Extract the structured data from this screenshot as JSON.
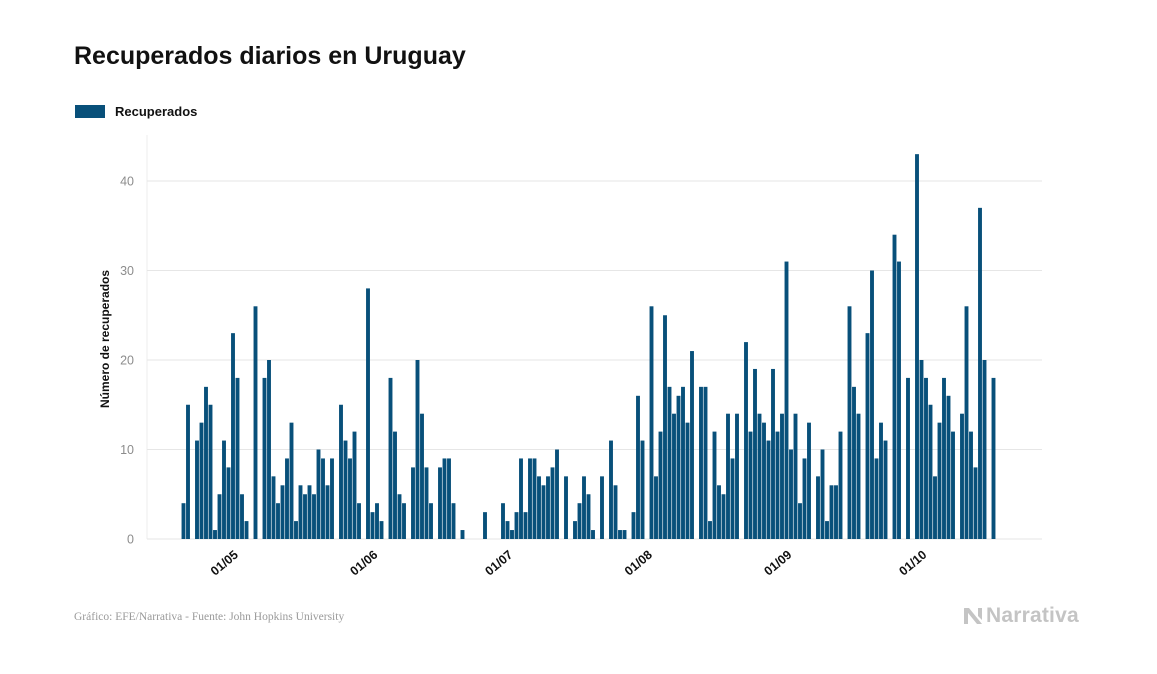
{
  "header": {
    "title": "Recuperados diarios en Uruguay"
  },
  "footer": {
    "source": "Gráfico: EFE/Narrativa - Fuente: John Hopkins University",
    "brand": "Narrativa"
  },
  "colors": {
    "bar": "#08507a",
    "grid": "#e6e6e6",
    "tick_text": "#8c8c8c",
    "axis_title": "#111111"
  },
  "chart_data": {
    "type": "bar",
    "title": "Recuperados diarios en Uruguay",
    "xlabel": "",
    "ylabel": "Número de recuperados",
    "ylim": [
      0,
      45
    ],
    "yticks": [
      0,
      10,
      20,
      30,
      40
    ],
    "grid": true,
    "legend": "top-left",
    "x_start": "2020-04-20",
    "x_tick_labels": [
      "01/05",
      "01/06",
      "01/07",
      "01/08",
      "01/09",
      "01/10"
    ],
    "x_tick_dates": [
      "2020-05-01",
      "2020-06-01",
      "2020-07-01",
      "2020-08-01",
      "2020-09-01",
      "2020-10-01"
    ],
    "series": [
      {
        "name": "Recuperados",
        "values": [
          4,
          15,
          0,
          11,
          13,
          17,
          15,
          1,
          5,
          11,
          8,
          23,
          18,
          5,
          2,
          0,
          26,
          0,
          18,
          20,
          7,
          4,
          6,
          9,
          13,
          2,
          6,
          5,
          6,
          5,
          10,
          9,
          6,
          9,
          0,
          15,
          11,
          9,
          12,
          4,
          0,
          28,
          3,
          4,
          2,
          0,
          18,
          12,
          5,
          4,
          0,
          8,
          20,
          14,
          8,
          4,
          0,
          8,
          9,
          9,
          4,
          0,
          1,
          0,
          0,
          0,
          0,
          3,
          0,
          0,
          0,
          4,
          2,
          1,
          3,
          9,
          3,
          9,
          9,
          7,
          6,
          7,
          8,
          10,
          0,
          7,
          0,
          2,
          4,
          7,
          5,
          1,
          0,
          7,
          0,
          11,
          6,
          1,
          1,
          0,
          3,
          16,
          11,
          0,
          26,
          7,
          12,
          25,
          17,
          14,
          16,
          17,
          13,
          21,
          0,
          17,
          17,
          2,
          12,
          6,
          5,
          14,
          9,
          14,
          0,
          22,
          12,
          19,
          14,
          13,
          11,
          19,
          12,
          14,
          31,
          10,
          14,
          4,
          9,
          13,
          0,
          7,
          10,
          2,
          6,
          6,
          12,
          0,
          26,
          17,
          14,
          0,
          23,
          30,
          9,
          13,
          11,
          0,
          34,
          31,
          0,
          18,
          0,
          43,
          20,
          18,
          15,
          7,
          13,
          18,
          16,
          12,
          0,
          14,
          26,
          12,
          8,
          37,
          20,
          0,
          18
        ]
      }
    ]
  }
}
